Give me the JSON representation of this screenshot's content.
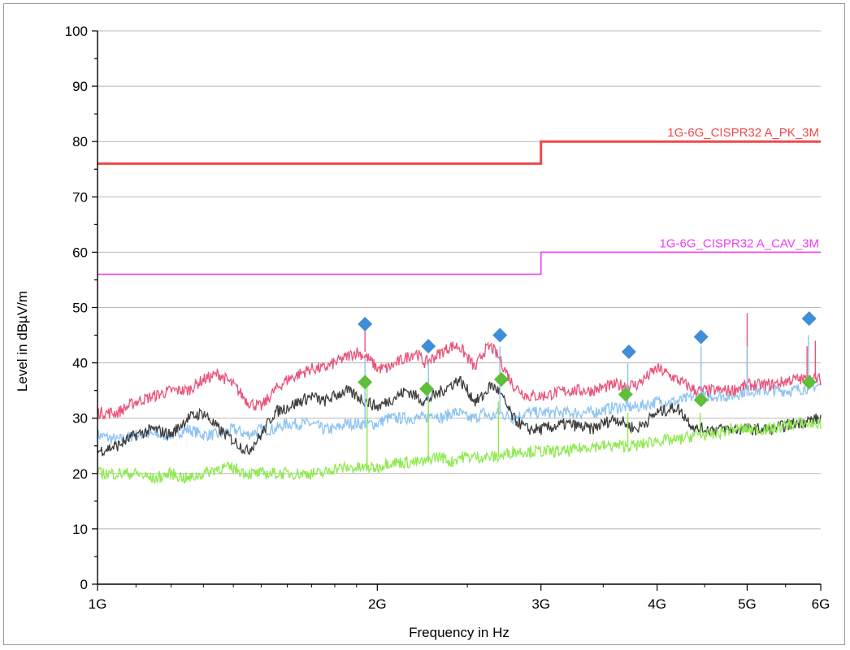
{
  "chart_data": {
    "type": "line",
    "xlabel": "Frequency in Hz",
    "ylabel": "Level in dBµV/m",
    "xscale": "log",
    "xlim": [
      1000000000,
      6000000000
    ],
    "ylim": [
      0,
      100
    ],
    "grid": "horizontal",
    "y_ticks": [
      "0",
      "10",
      "20",
      "30",
      "40",
      "50",
      "60",
      "70",
      "80",
      "90",
      "100"
    ],
    "x_ticks": [
      {
        "value": 1000000000,
        "label": "1G"
      },
      {
        "value": 2000000000,
        "label": "2G"
      },
      {
        "value": 3000000000,
        "label": "3G"
      },
      {
        "value": 4000000000,
        "label": "4G"
      },
      {
        "value": 5000000000,
        "label": "5G"
      },
      {
        "value": 6000000000,
        "label": "6G"
      }
    ],
    "limit_lines": [
      {
        "name": "1G-6G_CISPR32 A_PK_3M",
        "color": "#f04848",
        "width": 3,
        "segments": [
          [
            1000000000,
            3000000000,
            76
          ],
          [
            3000000000,
            6000000000,
            80
          ]
        ]
      },
      {
        "name": "1G-6G_CISPR32 A_CAV_3M",
        "color": "#ee3fee",
        "width": 1.6,
        "segments": [
          [
            1000000000,
            3000000000,
            56
          ],
          [
            3000000000,
            6000000000,
            60
          ]
        ]
      }
    ],
    "series": [
      {
        "color": "#e9547b",
        "values_ghz": [
          [
            1.0,
            31
          ],
          [
            1.05,
            31
          ],
          [
            1.1,
            33
          ],
          [
            1.15,
            34
          ],
          [
            1.2,
            35
          ],
          [
            1.25,
            35
          ],
          [
            1.3,
            37
          ],
          [
            1.35,
            38
          ],
          [
            1.4,
            36
          ],
          [
            1.45,
            33
          ],
          [
            1.5,
            32
          ],
          [
            1.55,
            35
          ],
          [
            1.6,
            37
          ],
          [
            1.65,
            38
          ],
          [
            1.7,
            39
          ],
          [
            1.75,
            39
          ],
          [
            1.8,
            40
          ],
          [
            1.85,
            41
          ],
          [
            1.9,
            42
          ],
          [
            1.95,
            41
          ],
          [
            2.0,
            39
          ],
          [
            2.05,
            39
          ],
          [
            2.1,
            40
          ],
          [
            2.15,
            41
          ],
          [
            2.2,
            42
          ],
          [
            2.25,
            40
          ],
          [
            2.3,
            41
          ],
          [
            2.35,
            42
          ],
          [
            2.4,
            43
          ],
          [
            2.45,
            43
          ],
          [
            2.5,
            41
          ],
          [
            2.55,
            39
          ],
          [
            2.6,
            42
          ],
          [
            2.65,
            43
          ],
          [
            2.7,
            41
          ],
          [
            2.8,
            36
          ],
          [
            2.9,
            34
          ],
          [
            3.0,
            34
          ],
          [
            3.2,
            35
          ],
          [
            3.4,
            35
          ],
          [
            3.6,
            36
          ],
          [
            3.8,
            36
          ],
          [
            4.0,
            39
          ],
          [
            4.2,
            37
          ],
          [
            4.4,
            35
          ],
          [
            4.6,
            35
          ],
          [
            4.8,
            35
          ],
          [
            5.0,
            36
          ],
          [
            5.3,
            36
          ],
          [
            5.6,
            37
          ],
          [
            6.0,
            37
          ]
        ]
      },
      {
        "color": "#3f3f3f",
        "values_ghz": [
          [
            1.0,
            24
          ],
          [
            1.05,
            25
          ],
          [
            1.1,
            27
          ],
          [
            1.15,
            28
          ],
          [
            1.2,
            27
          ],
          [
            1.25,
            30
          ],
          [
            1.3,
            31
          ],
          [
            1.35,
            28
          ],
          [
            1.4,
            26
          ],
          [
            1.45,
            24
          ],
          [
            1.5,
            27
          ],
          [
            1.55,
            31
          ],
          [
            1.6,
            32
          ],
          [
            1.65,
            33
          ],
          [
            1.7,
            34
          ],
          [
            1.75,
            33
          ],
          [
            1.8,
            34
          ],
          [
            1.85,
            35
          ],
          [
            1.9,
            34
          ],
          [
            1.95,
            33
          ],
          [
            2.0,
            32
          ],
          [
            2.05,
            33
          ],
          [
            2.1,
            34
          ],
          [
            2.15,
            35
          ],
          [
            2.2,
            34
          ],
          [
            2.25,
            33
          ],
          [
            2.3,
            34
          ],
          [
            2.35,
            35
          ],
          [
            2.4,
            36
          ],
          [
            2.45,
            37
          ],
          [
            2.5,
            35
          ],
          [
            2.55,
            33
          ],
          [
            2.6,
            34
          ],
          [
            2.65,
            36
          ],
          [
            2.7,
            35
          ],
          [
            2.8,
            30
          ],
          [
            2.9,
            28
          ],
          [
            3.0,
            28
          ],
          [
            3.2,
            29
          ],
          [
            3.4,
            28
          ],
          [
            3.6,
            30
          ],
          [
            3.8,
            28
          ],
          [
            4.0,
            31
          ],
          [
            4.2,
            32
          ],
          [
            4.4,
            28
          ],
          [
            4.6,
            28
          ],
          [
            4.8,
            28
          ],
          [
            5.0,
            28
          ],
          [
            5.3,
            28
          ],
          [
            5.6,
            29
          ],
          [
            6.0,
            30
          ]
        ]
      },
      {
        "color": "#8ec3f0",
        "values_ghz": [
          [
            1.0,
            27
          ],
          [
            1.05,
            26
          ],
          [
            1.1,
            27
          ],
          [
            1.15,
            27
          ],
          [
            1.2,
            27
          ],
          [
            1.25,
            28
          ],
          [
            1.3,
            27
          ],
          [
            1.35,
            27
          ],
          [
            1.4,
            28
          ],
          [
            1.45,
            27
          ],
          [
            1.5,
            28
          ],
          [
            1.55,
            28
          ],
          [
            1.6,
            29
          ],
          [
            1.65,
            29
          ],
          [
            1.7,
            29
          ],
          [
            1.75,
            28
          ],
          [
            1.8,
            28
          ],
          [
            1.85,
            29
          ],
          [
            1.9,
            29
          ],
          [
            1.95,
            29
          ],
          [
            2.0,
            29
          ],
          [
            2.05,
            30
          ],
          [
            2.1,
            30
          ],
          [
            2.15,
            30
          ],
          [
            2.2,
            30
          ],
          [
            2.25,
            30
          ],
          [
            2.3,
            31
          ],
          [
            2.35,
            30
          ],
          [
            2.4,
            31
          ],
          [
            2.45,
            31
          ],
          [
            2.5,
            30
          ],
          [
            2.55,
            30
          ],
          [
            2.6,
            31
          ],
          [
            2.65,
            30
          ],
          [
            2.7,
            31
          ],
          [
            2.8,
            30
          ],
          [
            2.9,
            31
          ],
          [
            3.0,
            31
          ],
          [
            3.2,
            31
          ],
          [
            3.4,
            31
          ],
          [
            3.6,
            32
          ],
          [
            3.8,
            32
          ],
          [
            4.0,
            33
          ],
          [
            4.2,
            33
          ],
          [
            4.4,
            34
          ],
          [
            4.6,
            34
          ],
          [
            4.8,
            34
          ],
          [
            5.0,
            35
          ],
          [
            5.3,
            35
          ],
          [
            5.6,
            35
          ],
          [
            6.0,
            36
          ]
        ]
      },
      {
        "color": "#8fea50",
        "values_ghz": [
          [
            1.0,
            20
          ],
          [
            1.05,
            20
          ],
          [
            1.1,
            20
          ],
          [
            1.15,
            19
          ],
          [
            1.2,
            20
          ],
          [
            1.25,
            19
          ],
          [
            1.3,
            20
          ],
          [
            1.35,
            21
          ],
          [
            1.4,
            21
          ],
          [
            1.45,
            20
          ],
          [
            1.5,
            20
          ],
          [
            1.55,
            20
          ],
          [
            1.6,
            20
          ],
          [
            1.65,
            20
          ],
          [
            1.7,
            20
          ],
          [
            1.75,
            20
          ],
          [
            1.8,
            21
          ],
          [
            1.85,
            21
          ],
          [
            1.9,
            21
          ],
          [
            1.95,
            21
          ],
          [
            2.0,
            21
          ],
          [
            2.05,
            22
          ],
          [
            2.1,
            22
          ],
          [
            2.15,
            22
          ],
          [
            2.2,
            22
          ],
          [
            2.25,
            22
          ],
          [
            2.3,
            23
          ],
          [
            2.35,
            23
          ],
          [
            2.4,
            22
          ],
          [
            2.45,
            23
          ],
          [
            2.5,
            23
          ],
          [
            2.55,
            23
          ],
          [
            2.6,
            23
          ],
          [
            2.65,
            23
          ],
          [
            2.7,
            23
          ],
          [
            2.8,
            24
          ],
          [
            2.9,
            24
          ],
          [
            3.0,
            24
          ],
          [
            3.2,
            24
          ],
          [
            3.4,
            25
          ],
          [
            3.6,
            25
          ],
          [
            3.8,
            25
          ],
          [
            4.0,
            26
          ],
          [
            4.2,
            26
          ],
          [
            4.4,
            27
          ],
          [
            4.6,
            27
          ],
          [
            4.8,
            28
          ],
          [
            5.0,
            28
          ],
          [
            5.3,
            28
          ],
          [
            5.6,
            29
          ],
          [
            6.0,
            29
          ]
        ]
      }
    ],
    "spikes": [
      {
        "series": 0,
        "f_ghz": 1.94,
        "level": 46
      },
      {
        "series": 2,
        "f_ghz": 1.94,
        "level": 41
      },
      {
        "series": 3,
        "f_ghz": 1.95,
        "level": 36
      },
      {
        "series": 2,
        "f_ghz": 2.27,
        "level": 40
      },
      {
        "series": 3,
        "f_ghz": 2.27,
        "level": 33
      },
      {
        "series": 2,
        "f_ghz": 2.71,
        "level": 43
      },
      {
        "series": 3,
        "f_ghz": 2.7,
        "level": 33
      },
      {
        "series": 2,
        "f_ghz": 3.72,
        "level": 40
      },
      {
        "series": 3,
        "f_ghz": 3.72,
        "level": 31
      },
      {
        "series": 2,
        "f_ghz": 4.46,
        "level": 43
      },
      {
        "series": 3,
        "f_ghz": 4.45,
        "level": 31
      },
      {
        "series": 0,
        "f_ghz": 5.0,
        "level": 49
      },
      {
        "series": 2,
        "f_ghz": 5.0,
        "level": 43
      },
      {
        "series": 0,
        "f_ghz": 5.8,
        "level": 43
      },
      {
        "series": 2,
        "f_ghz": 5.82,
        "level": 45
      },
      {
        "series": 0,
        "f_ghz": 5.92,
        "level": 44
      }
    ],
    "markers": [
      {
        "shape": "diamond",
        "color": "#3f8fd8",
        "points_ghz": [
          [
            1.94,
            47
          ],
          [
            2.27,
            43
          ],
          [
            2.71,
            45
          ],
          [
            3.73,
            42
          ],
          [
            4.46,
            44.7
          ],
          [
            5.83,
            48
          ]
        ]
      },
      {
        "shape": "diamond",
        "color": "#5fbf3a",
        "points_ghz": [
          [
            1.94,
            36.5
          ],
          [
            2.26,
            35.3
          ],
          [
            2.72,
            37
          ],
          [
            3.7,
            34.3
          ],
          [
            4.46,
            33.3
          ],
          [
            5.83,
            36.5
          ]
        ]
      }
    ]
  }
}
